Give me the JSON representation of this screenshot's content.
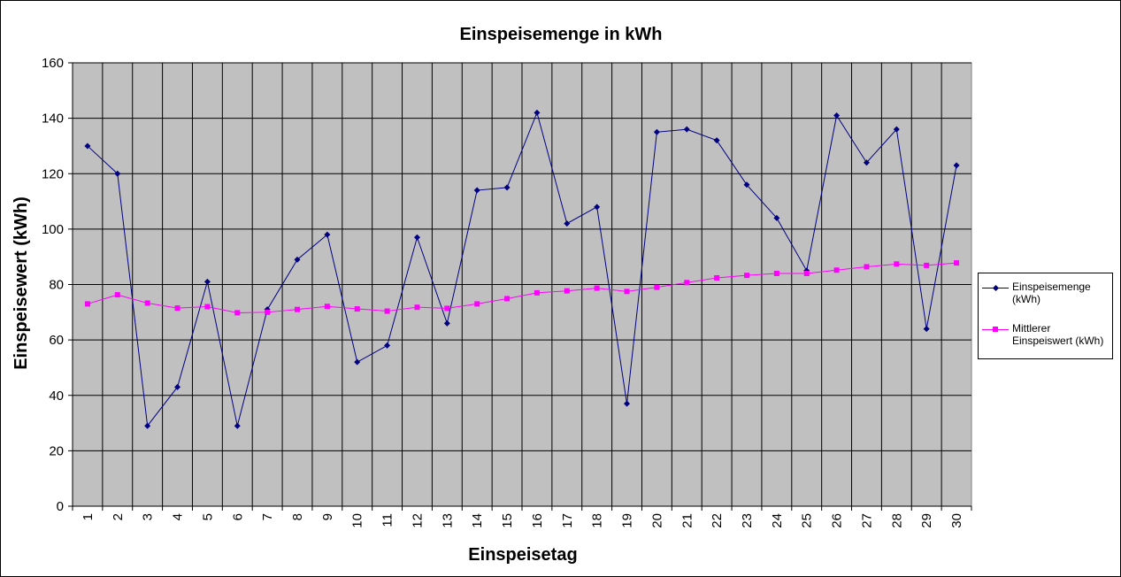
{
  "chart_data": {
    "type": "line",
    "title": "Einspeisemenge in kWh",
    "xlabel": "Einspeisetag",
    "ylabel": "Einspeisewert  (kWh)",
    "categories": [
      "1",
      "2",
      "3",
      "4",
      "5",
      "6",
      "7",
      "8",
      "9",
      "10",
      "11",
      "12",
      "13",
      "14",
      "15",
      "16",
      "17",
      "18",
      "19",
      "20",
      "21",
      "22",
      "23",
      "24",
      "25",
      "26",
      "27",
      "28",
      "29",
      "30"
    ],
    "ylim": [
      0,
      160
    ],
    "yticks": [
      "0",
      "20",
      "40",
      "60",
      "80",
      "100",
      "120",
      "140",
      "160"
    ],
    "grid": true,
    "legend_position": "right",
    "plot_background": "#c0c0c0",
    "series": [
      {
        "name": "Einspeisemenge (kWh)",
        "legend_lines": [
          "Einspeisemenge",
          "(kWh)"
        ],
        "color": "#000080",
        "marker": "diamond",
        "values": [
          130,
          120,
          29,
          43,
          81,
          29,
          71,
          89,
          98,
          52,
          58,
          97,
          66,
          114,
          115,
          142,
          102,
          108,
          37,
          135,
          136,
          132,
          116,
          104,
          85,
          141,
          124,
          136,
          64,
          123
        ]
      },
      {
        "name": "Mittlerer Einspeiswert (kWh)",
        "legend_lines": [
          "Mittlerer",
          "Einspeiswert (kWh)"
        ],
        "color": "#ff00ff",
        "marker": "square",
        "values": [
          73,
          76.3,
          73.3,
          71.5,
          72,
          69.8,
          70,
          71,
          72.1,
          71.2,
          70.4,
          71.8,
          71.4,
          73,
          74.9,
          77,
          77.7,
          78.7,
          77.5,
          79,
          80.7,
          82.4,
          83.3,
          84,
          84,
          85.2,
          86.4,
          87.4,
          86.9,
          87.8
        ]
      }
    ]
  }
}
